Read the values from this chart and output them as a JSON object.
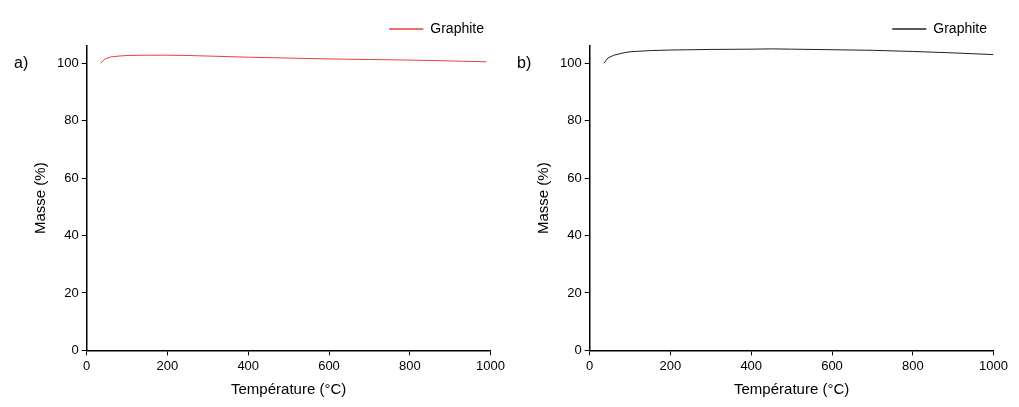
{
  "chart_data": [
    {
      "type": "line",
      "annotations": [
        "a)"
      ],
      "xlabel": "Température (°C)",
      "ylabel": "Masse (%)",
      "xlim": [
        0,
        1000
      ],
      "ylim": [
        0,
        106
      ],
      "xticks": [
        0,
        200,
        400,
        600,
        800,
        1000
      ],
      "yticks": [
        0,
        20,
        40,
        60,
        80,
        100
      ],
      "legend": "top right",
      "grid": false,
      "marker": "none",
      "series": [
        {
          "name": "Graphite",
          "color": "#e8413c",
          "x": [
            35,
            45,
            60,
            80,
            100,
            150,
            200,
            250,
            300,
            400,
            500,
            600,
            700,
            800,
            900,
            990
          ],
          "values": [
            100,
            101.5,
            102.2,
            102.5,
            102.7,
            102.8,
            102.8,
            102.7,
            102.5,
            102.1,
            101.8,
            101.5,
            101.3,
            101.1,
            100.8,
            100.5
          ]
        }
      ]
    },
    {
      "type": "line",
      "annotations": [
        "b)"
      ],
      "xlabel": "Température (°C)",
      "ylabel": "Masse (%)",
      "xlim": [
        0,
        1000
      ],
      "ylim": [
        0,
        106
      ],
      "xticks": [
        0,
        200,
        400,
        600,
        800,
        1000
      ],
      "yticks": [
        0,
        20,
        40,
        60,
        80,
        100
      ],
      "legend": "top right",
      "grid": false,
      "marker": "none",
      "series": [
        {
          "name": "Graphite",
          "color": "#222222",
          "x": [
            35,
            45,
            60,
            80,
            100,
            150,
            200,
            300,
            400,
            450,
            500,
            600,
            700,
            800,
            900,
            1000
          ],
          "values": [
            100,
            101.8,
            102.8,
            103.5,
            104,
            104.4,
            104.6,
            104.8,
            104.9,
            105,
            104.9,
            104.7,
            104.5,
            104.1,
            103.6,
            103
          ]
        }
      ]
    }
  ]
}
